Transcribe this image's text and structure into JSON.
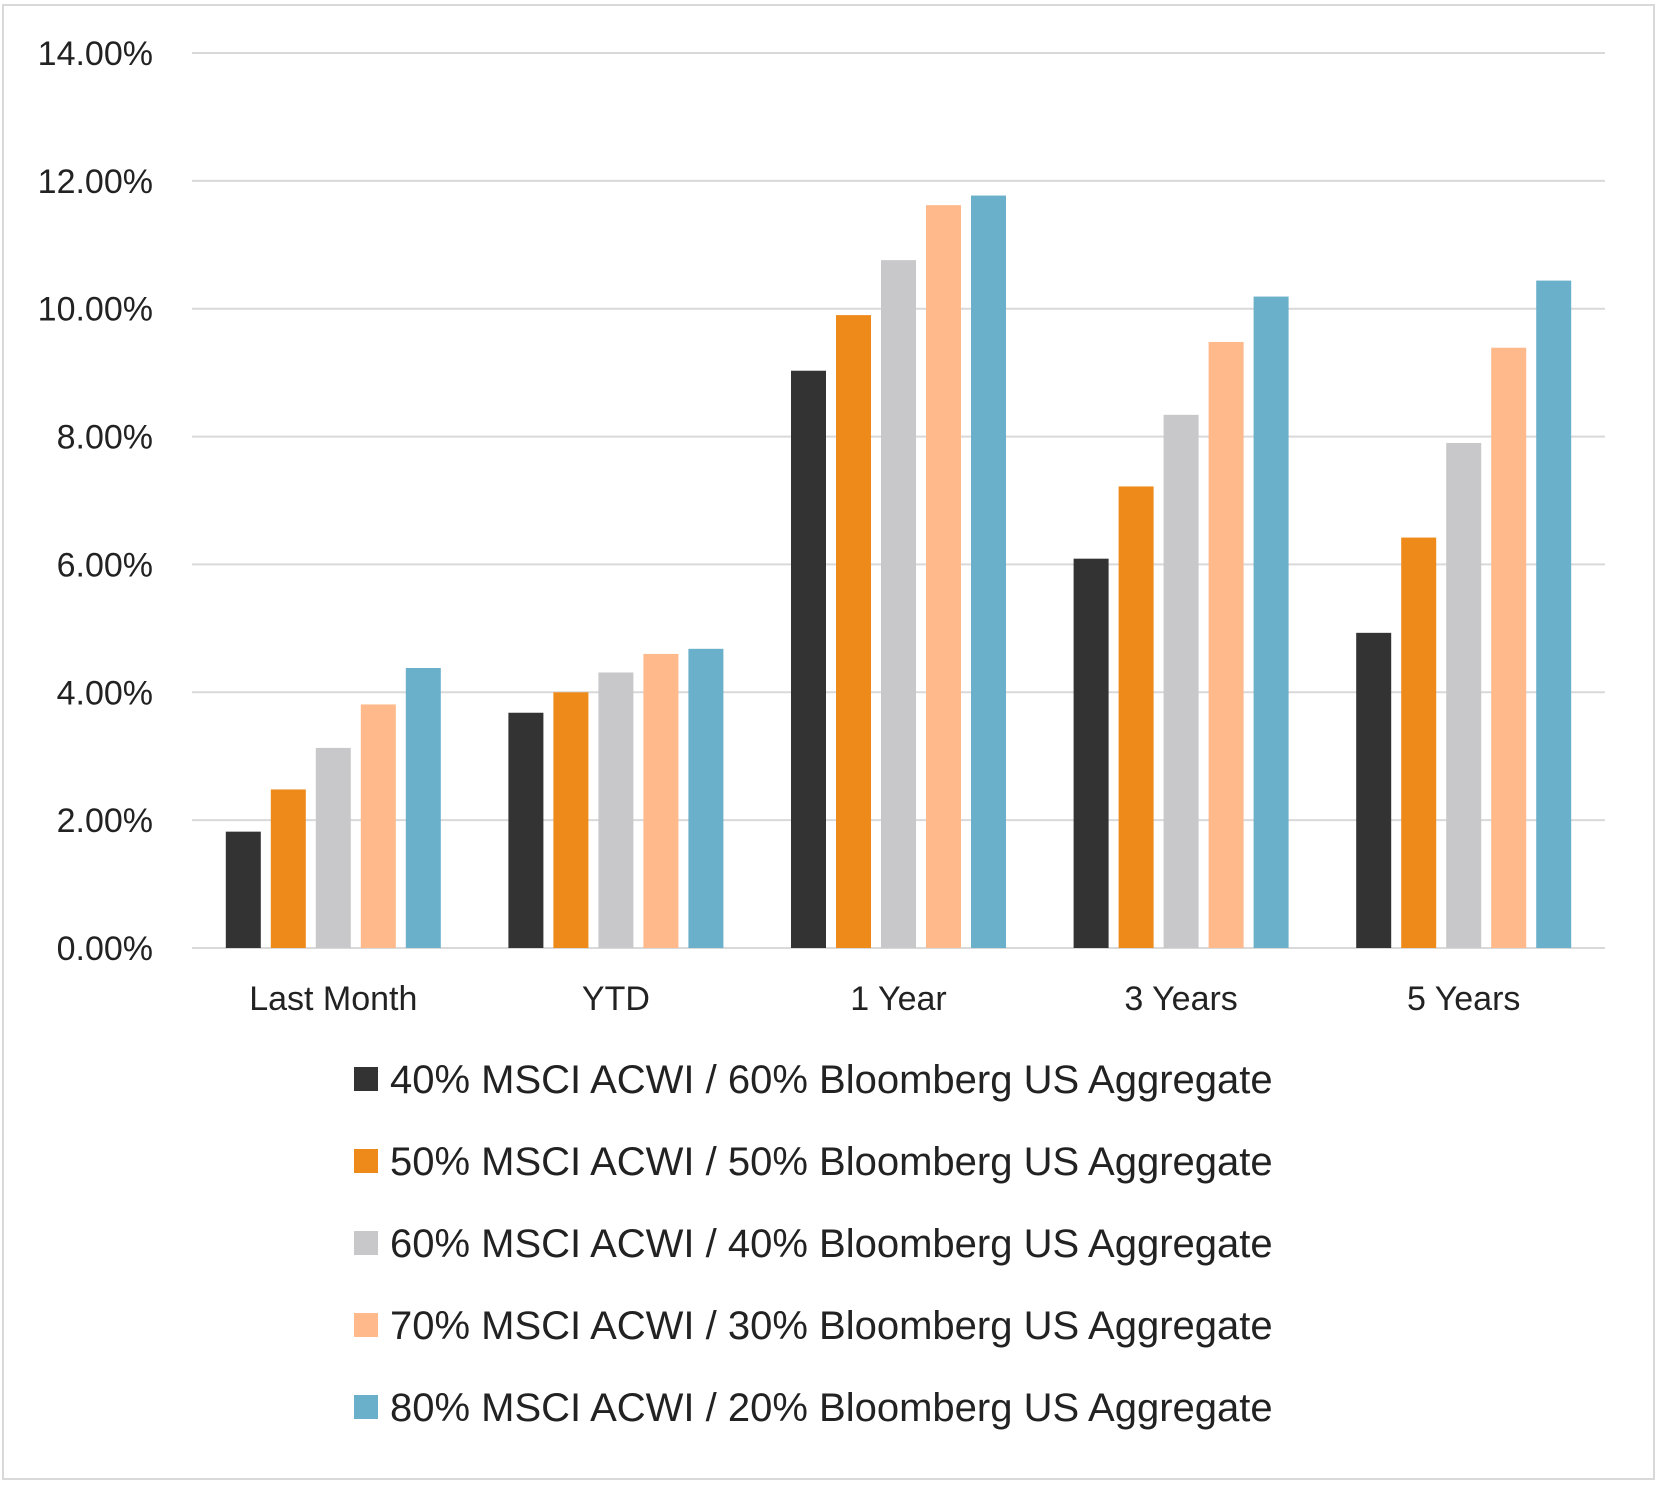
{
  "chart_data": {
    "type": "bar",
    "categories": [
      "Last Month",
      "YTD",
      "1 Year",
      "3 Years",
      "5 Years"
    ],
    "series": [
      {
        "name": "40% MSCI ACWI / 60% Bloomberg US Aggregate",
        "color": "#333333",
        "values": [
          1.82,
          3.68,
          9.03,
          6.09,
          4.93
        ]
      },
      {
        "name": "50% MSCI ACWI / 50% Bloomberg US Aggregate",
        "color": "#ee8a1a",
        "values": [
          2.48,
          4.0,
          9.9,
          7.22,
          6.42
        ]
      },
      {
        "name": "60% MSCI ACWI / 40% Bloomberg US Aggregate",
        "color": "#c8c8ca",
        "values": [
          3.13,
          4.31,
          10.76,
          8.34,
          7.9
        ]
      },
      {
        "name": "70% MSCI ACWI / 30% Bloomberg US Aggregate",
        "color": "#ffb98a",
        "values": [
          3.81,
          4.6,
          11.62,
          9.48,
          9.39
        ]
      },
      {
        "name": "80% MSCI ACWI / 20% Bloomberg US Aggregate",
        "color": "#6ab0cb",
        "values": [
          4.38,
          4.68,
          11.77,
          10.19,
          10.44
        ]
      }
    ],
    "ylim": [
      0,
      14
    ],
    "yticks": [
      "0.00%",
      "2.00%",
      "4.00%",
      "6.00%",
      "8.00%",
      "10.00%",
      "12.00%",
      "14.00%"
    ],
    "title": "",
    "xlabel": "",
    "ylabel": "",
    "grid": true,
    "legend_position": "bottom"
  }
}
